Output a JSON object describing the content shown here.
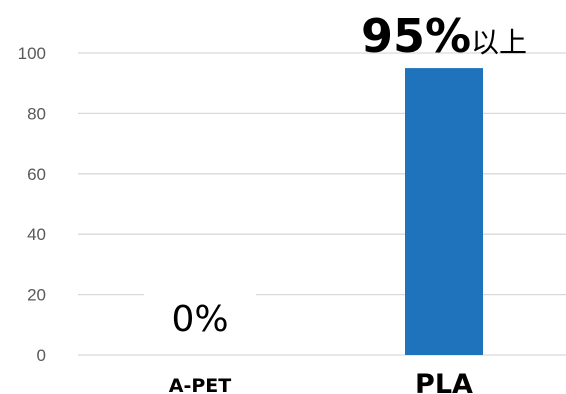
{
  "chart_data": {
    "type": "bar",
    "categories": [
      "A-PET",
      "PLA"
    ],
    "values": [
      0,
      95
    ],
    "data_labels": [
      {
        "main": "0%",
        "suffix": ""
      },
      {
        "main": "95%",
        "suffix": "以上"
      }
    ],
    "ylim": [
      0,
      100
    ],
    "yticks": [
      0,
      20,
      40,
      60,
      80,
      100
    ],
    "grid": true,
    "bar_color": "#1f73bd",
    "grid_color": "#d9d9d9",
    "legend": "none"
  }
}
